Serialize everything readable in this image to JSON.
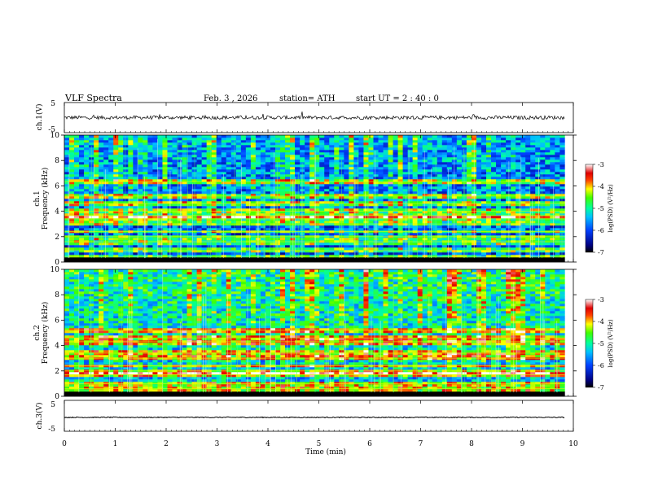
{
  "header": {
    "title": "VLF  Spectra",
    "date": "Feb. 3  , 2026",
    "station": "station= ATH",
    "start": "start  UT  =   2 : 40 : 0"
  },
  "chart_data": [
    {
      "type": "line",
      "name": "ch1-waveform",
      "ylabel": "ch.1(V)",
      "yticks": [
        "5",
        "-5"
      ],
      "ylim": [
        -5,
        5
      ],
      "xlim": [
        0,
        9.83
      ],
      "description_values": {
        "mean": 0.0,
        "noise_amplitude": 0.6
      }
    },
    {
      "type": "heatmap",
      "name": "ch1-spectrogram",
      "ylabel_channel": "ch.1",
      "ylabel": "Frequency  (kHz)",
      "yticks": [
        "0",
        "2",
        "4",
        "6",
        "8",
        "10"
      ],
      "ylim": [
        0,
        10
      ],
      "xlim": [
        0,
        9.83
      ],
      "colorbar": {
        "label": "log(PSD) (V²/Hz)",
        "ticks": [
          "-3",
          "-4",
          "-5",
          "-6",
          "-7"
        ],
        "range": [
          -7,
          -3
        ]
      },
      "bands_khz": [
        0.4,
        0.9,
        1.6,
        2.0,
        2.4,
        3.0,
        3.4,
        3.7,
        4.0,
        4.6,
        5.2,
        6.3
      ],
      "background_level": -6.0
    },
    {
      "type": "heatmap",
      "name": "ch2-spectrogram",
      "ylabel_channel": "ch.2",
      "ylabel": "Frequency  (kHz)",
      "yticks": [
        "0",
        "2",
        "4",
        "6",
        "8",
        "10"
      ],
      "ylim": [
        0,
        10
      ],
      "xlim": [
        0,
        9.83
      ],
      "colorbar": {
        "label": "log(PSD) (V²/Hz)",
        "ticks": [
          "-3",
          "-4",
          "-5",
          "-6",
          "-7"
        ],
        "range": [
          -7,
          -3
        ]
      },
      "bands_khz": [
        0.6,
        1.0,
        1.7,
        2.0,
        2.4,
        3.0,
        3.4,
        4.3,
        4.6,
        5.2
      ],
      "background_level": -5.4
    },
    {
      "type": "line",
      "name": "ch3-waveform",
      "ylabel": "ch.3(V)",
      "yticks": [
        "5",
        "-5"
      ],
      "ylim": [
        -5,
        5
      ],
      "xlim": [
        0,
        9.83
      ],
      "description_values": {
        "mean": -0.5,
        "noise_amplitude": 0.15
      }
    }
  ],
  "xaxis": {
    "label": "Time  (min)",
    "ticks": [
      "0",
      "1",
      "2",
      "3",
      "4",
      "5",
      "6",
      "7",
      "8",
      "9",
      "10"
    ],
    "range": [
      0,
      10
    ]
  }
}
